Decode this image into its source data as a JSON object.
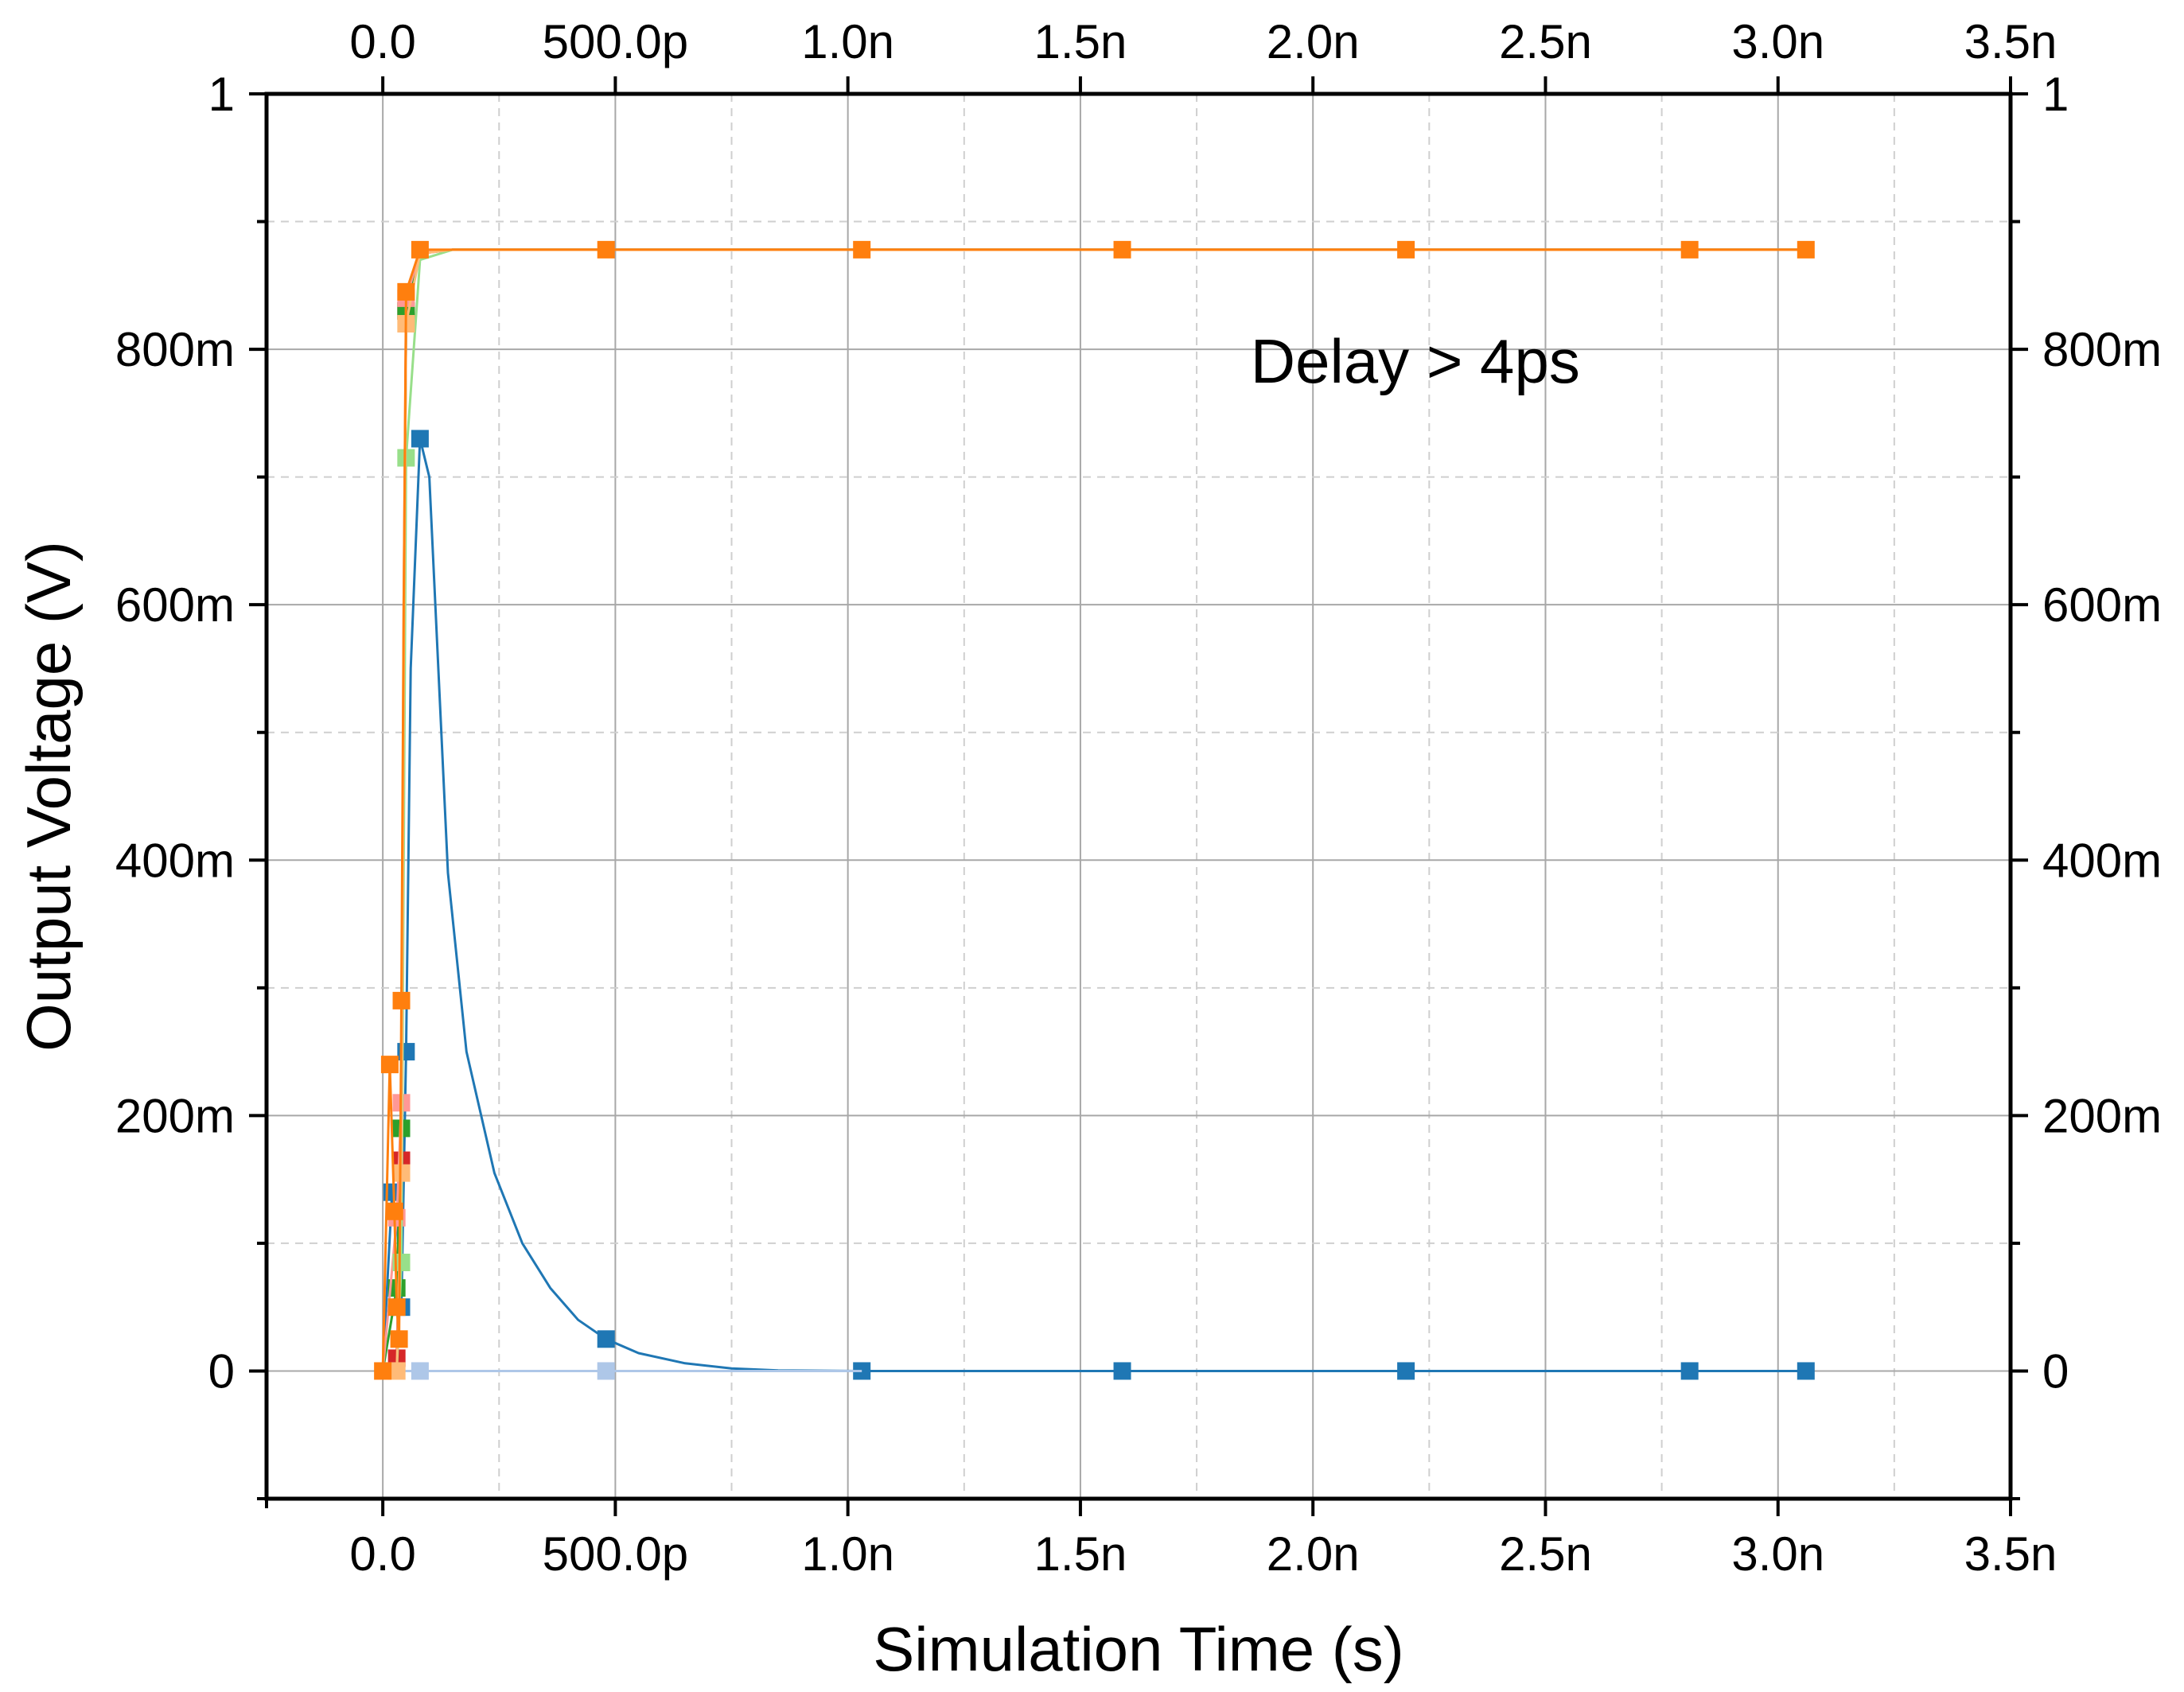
{
  "chart_data": {
    "type": "line",
    "title": "",
    "xlabel": "Simulation Time (s)",
    "ylabel": "Output Voltage (V)",
    "xlim": [
      -2.5e-10,
      3.5e-09
    ],
    "ylim": [
      -0.1,
      1.0
    ],
    "grid": true,
    "legend": "none",
    "x_ticks": [
      {
        "value": 0,
        "label": "0.0"
      },
      {
        "value": 5e-10,
        "label": "500.0p"
      },
      {
        "value": 1e-09,
        "label": "1.0n"
      },
      {
        "value": 1.5e-09,
        "label": "1.5n"
      },
      {
        "value": 2e-09,
        "label": "2.0n"
      },
      {
        "value": 2.5e-09,
        "label": "2.5n"
      },
      {
        "value": 3e-09,
        "label": "3.0n"
      },
      {
        "value": 3.5e-09,
        "label": "3.5n"
      }
    ],
    "y_ticks_left": [
      {
        "value": 0,
        "label": "0"
      },
      {
        "value": 0.2,
        "label": "200m"
      },
      {
        "value": 0.4,
        "label": "400m"
      },
      {
        "value": 0.6,
        "label": "600m"
      },
      {
        "value": 0.8,
        "label": "800m"
      },
      {
        "value": 1.0,
        "label": "1"
      }
    ],
    "y_ticks_right": [
      {
        "value": 0,
        "label": "0"
      },
      {
        "value": 0.2,
        "label": "200m"
      },
      {
        "value": 0.4,
        "label": "400m"
      },
      {
        "value": 0.6,
        "label": "600m"
      },
      {
        "value": 0.8,
        "label": "800m"
      },
      {
        "value": 1.0,
        "label": "1"
      }
    ],
    "annotation": {
      "text": "Delay > 4ps",
      "x": 2.22e-09,
      "y": 0.79
    },
    "series": [
      {
        "color": "#1f77b4",
        "points": [
          [
            0,
            0
          ],
          [
            2e-11,
            0.14
          ],
          [
            3e-11,
            0.12
          ],
          [
            4e-11,
            0.05
          ],
          [
            5e-11,
            0.25
          ],
          [
            6e-11,
            0.55
          ],
          [
            8e-11,
            0.73
          ],
          [
            1e-10,
            0.7
          ],
          [
            1.4e-10,
            0.39
          ],
          [
            1.8e-10,
            0.25
          ],
          [
            2.4e-10,
            0.155
          ],
          [
            3e-10,
            0.1
          ],
          [
            3.6e-10,
            0.065
          ],
          [
            4.2e-10,
            0.04
          ],
          [
            4.8e-10,
            0.025
          ],
          [
            5.5e-10,
            0.014
          ],
          [
            6.5e-10,
            0.006
          ],
          [
            7.5e-10,
            0.002
          ],
          [
            8.5e-10,
            0.0005
          ],
          [
            1.03e-09,
            0
          ],
          [
            1.59e-09,
            0
          ],
          [
            2.2e-09,
            0
          ],
          [
            2.81e-09,
            0
          ],
          [
            3.06e-09,
            0
          ]
        ],
        "markers": [
          [
            2e-11,
            0.14
          ],
          [
            4e-11,
            0.05
          ],
          [
            5e-11,
            0.25
          ],
          [
            8e-11,
            0.73
          ],
          [
            4.8e-10,
            0.025
          ],
          [
            1.03e-09,
            0
          ],
          [
            1.59e-09,
            0
          ],
          [
            2.2e-09,
            0
          ],
          [
            2.81e-09,
            0
          ],
          [
            3.06e-09,
            0
          ]
        ]
      },
      {
        "color": "#aec7e8",
        "points": [
          [
            0,
            0
          ],
          [
            4e-11,
            0.0
          ],
          [
            8e-11,
            0.0
          ],
          [
            4.8e-10,
            0.0
          ],
          [
            1.03e-09,
            0.0
          ]
        ],
        "markers": [
          [
            8e-11,
            0.0
          ],
          [
            4.8e-10,
            0.0
          ]
        ]
      },
      {
        "color": "#d62728",
        "points": [
          [
            0,
            0
          ],
          [
            3e-11,
            0.01
          ],
          [
            4e-11,
            0.165
          ],
          [
            4.5e-11,
            0.55
          ],
          [
            5e-11,
            0.83
          ],
          [
            8e-11,
            0.875
          ],
          [
            1.5e-10,
            0.878
          ],
          [
            3.06e-09,
            0.878
          ]
        ],
        "markers": [
          [
            3e-11,
            0.01
          ],
          [
            4e-11,
            0.165
          ],
          [
            5e-11,
            0.83
          ]
        ]
      },
      {
        "color": "#2ca02c",
        "points": [
          [
            0,
            0
          ],
          [
            3e-11,
            0.065
          ],
          [
            4e-11,
            0.19
          ],
          [
            4.5e-11,
            0.55
          ],
          [
            5e-11,
            0.83
          ],
          [
            8e-11,
            0.876
          ],
          [
            1.5e-10,
            0.878
          ],
          [
            3.06e-09,
            0.878
          ]
        ],
        "markers": [
          [
            3e-11,
            0.065
          ],
          [
            4e-11,
            0.19
          ],
          [
            5e-11,
            0.83
          ]
        ]
      },
      {
        "color": "#ff9896",
        "points": [
          [
            0,
            0
          ],
          [
            3e-11,
            0.12
          ],
          [
            4e-11,
            0.21
          ],
          [
            4.5e-11,
            0.6
          ],
          [
            5e-11,
            0.84
          ],
          [
            8e-11,
            0.876
          ],
          [
            1.5e-10,
            0.878
          ],
          [
            3.06e-09,
            0.878
          ]
        ],
        "markers": [
          [
            3e-11,
            0.12
          ],
          [
            4e-11,
            0.21
          ],
          [
            5e-11,
            0.84
          ]
        ]
      },
      {
        "color": "#98df8a",
        "points": [
          [
            0,
            0
          ],
          [
            3e-11,
            0.0
          ],
          [
            4e-11,
            0.085
          ],
          [
            4.5e-11,
            0.4
          ],
          [
            5e-11,
            0.715
          ],
          [
            8e-11,
            0.87
          ],
          [
            1.5e-10,
            0.878
          ],
          [
            3.06e-09,
            0.878
          ]
        ],
        "markers": [
          [
            4e-11,
            0.085
          ],
          [
            5e-11,
            0.715
          ]
        ]
      },
      {
        "color": "#ffbb78",
        "points": [
          [
            0,
            0
          ],
          [
            3e-11,
            0.0
          ],
          [
            4e-11,
            0.155
          ],
          [
            4.5e-11,
            0.55
          ],
          [
            5e-11,
            0.82
          ],
          [
            8e-11,
            0.875
          ],
          [
            1.5e-10,
            0.878
          ],
          [
            3.06e-09,
            0.878
          ]
        ],
        "markers": [
          [
            3e-11,
            0.0
          ],
          [
            4e-11,
            0.155
          ],
          [
            5e-11,
            0.82
          ]
        ]
      },
      {
        "color": "#ff7f0e",
        "points": [
          [
            0,
            0
          ],
          [
            1.5e-11,
            0.24
          ],
          [
            2.5e-11,
            0.125
          ],
          [
            3e-11,
            0.05
          ],
          [
            3.5e-11,
            0.025
          ],
          [
            4e-11,
            0.29
          ],
          [
            4.5e-11,
            0.6
          ],
          [
            5e-11,
            0.845
          ],
          [
            8e-11,
            0.878
          ],
          [
            1.5e-10,
            0.878
          ],
          [
            4.8e-10,
            0.878
          ],
          [
            1.03e-09,
            0.878
          ],
          [
            1.59e-09,
            0.878
          ],
          [
            2.2e-09,
            0.878
          ],
          [
            2.81e-09,
            0.878
          ],
          [
            3.06e-09,
            0.878
          ]
        ],
        "markers": [
          [
            0,
            0
          ],
          [
            1.5e-11,
            0.24
          ],
          [
            2.5e-11,
            0.125
          ],
          [
            3e-11,
            0.05
          ],
          [
            3.5e-11,
            0.025
          ],
          [
            4e-11,
            0.29
          ],
          [
            5e-11,
            0.845
          ],
          [
            8e-11,
            0.878
          ],
          [
            4.8e-10,
            0.878
          ],
          [
            1.03e-09,
            0.878
          ],
          [
            1.59e-09,
            0.878
          ],
          [
            2.2e-09,
            0.878
          ],
          [
            2.81e-09,
            0.878
          ],
          [
            3.06e-09,
            0.878
          ]
        ]
      }
    ]
  }
}
